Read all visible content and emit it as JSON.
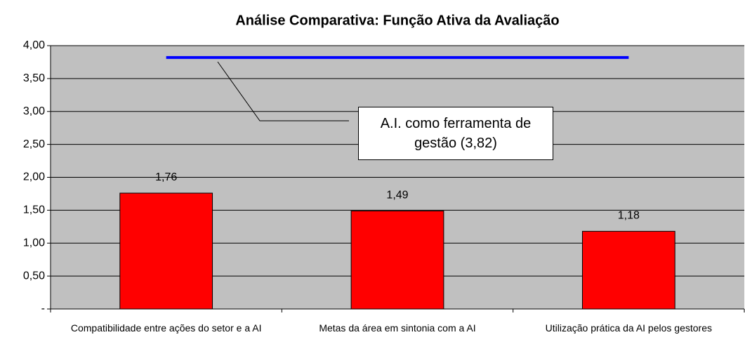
{
  "chart_data": {
    "type": "bar",
    "title": "Análise Comparativa: Função Ativa da Avaliação",
    "categories": [
      "Compatibilidade entre ações do setor e a AI",
      "Metas da área em sintonia com a AI",
      "Utilização prática da AI pelos gestores"
    ],
    "values": [
      1.76,
      1.49,
      1.18
    ],
    "value_labels": [
      "1,76",
      "1,49",
      "1,18"
    ],
    "color": "#ff0000",
    "reference_line": {
      "value": 3.82,
      "label": "A.I. como ferramenta de gestão (3,82)",
      "color": "#0000ff"
    },
    "ylim": [
      0,
      4
    ],
    "yticks": [
      {
        "value": 0,
        "label": "-"
      },
      {
        "value": 0.5,
        "label": "0,50"
      },
      {
        "value": 1,
        "label": "1,00"
      },
      {
        "value": 1.5,
        "label": "1,50"
      },
      {
        "value": 2,
        "label": "2,00"
      },
      {
        "value": 2.5,
        "label": "2,50"
      },
      {
        "value": 3,
        "label": "3,00"
      },
      {
        "value": 3.5,
        "label": "3,50"
      },
      {
        "value": 4,
        "label": "4,00"
      }
    ],
    "grid": true
  }
}
